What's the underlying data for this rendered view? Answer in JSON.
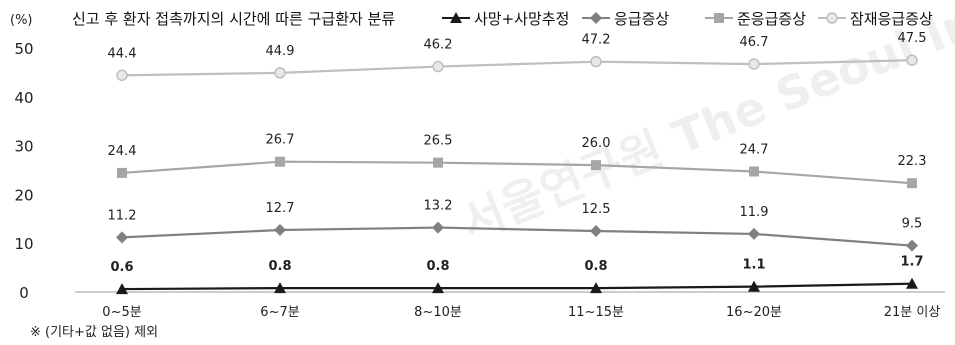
{
  "chart_data": {
    "type": "line",
    "title": "신고 후 환자 접촉까지의 시간에 따른 구급환자 분류",
    "unit_label": "(%)",
    "note": "※ (기타+값 없음) 제외",
    "watermark": "서울연구원 The Seoul Institute",
    "categories": [
      "0~5분",
      "6~7분",
      "8~10분",
      "11~15분",
      "16~20분",
      "21분 이상"
    ],
    "ylim": [
      0,
      50
    ],
    "yticks": [
      0,
      10,
      20,
      30,
      40,
      50
    ],
    "legend_position": "top",
    "series": [
      {
        "name": "사망+사망추정",
        "marker": "triangle",
        "color": "#1a1a1a",
        "values": [
          0.6,
          0.8,
          0.8,
          0.8,
          1.1,
          1.7
        ],
        "labels": [
          "0.6",
          "0.8",
          "0.8",
          "0.8",
          "1.1",
          "1.7"
        ]
      },
      {
        "name": "응급증상",
        "marker": "diamond",
        "color": "#808080",
        "values": [
          11.2,
          12.7,
          13.2,
          12.5,
          11.9,
          9.5
        ],
        "labels": [
          "11.2",
          "12.7",
          "13.2",
          "12.5",
          "11.9",
          "9.5"
        ]
      },
      {
        "name": "준응급증상",
        "marker": "square",
        "color": "#a6a6a6",
        "values": [
          24.4,
          26.7,
          26.5,
          26.0,
          24.7,
          22.3
        ],
        "labels": [
          "24.4",
          "26.7",
          "26.5",
          "26.0",
          "24.7",
          "22.3"
        ]
      },
      {
        "name": "잠재응급증상",
        "marker": "circle",
        "color": "#bfbfbf",
        "values": [
          44.4,
          44.9,
          46.2,
          47.2,
          46.7,
          47.5
        ],
        "labels": [
          "44.4",
          "44.9",
          "46.2",
          "47.2",
          "46.7",
          "47.5"
        ]
      }
    ]
  }
}
